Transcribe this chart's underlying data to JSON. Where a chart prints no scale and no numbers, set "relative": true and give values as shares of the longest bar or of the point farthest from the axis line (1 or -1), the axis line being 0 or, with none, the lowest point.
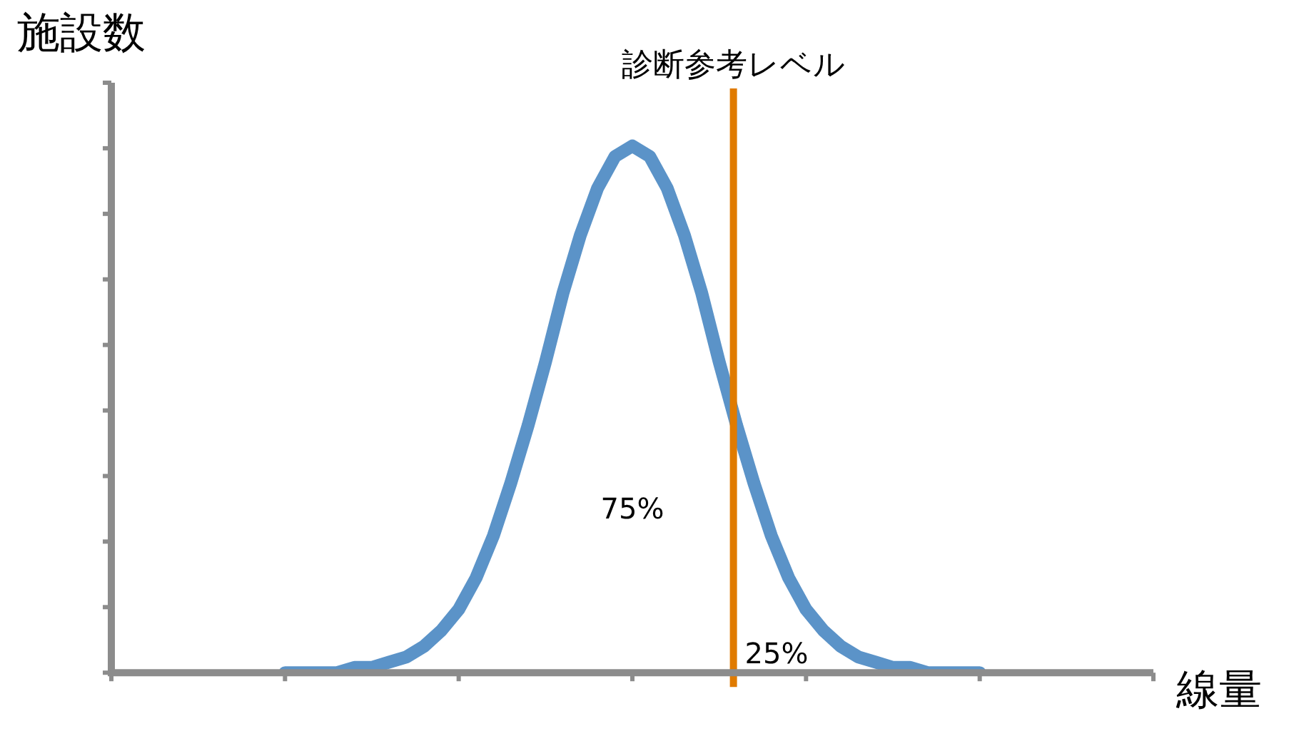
{
  "chart_data": {
    "type": "line",
    "relative": true,
    "xlabel": "線量",
    "ylabel": "施設数",
    "categories": [
      null,
      null,
      null,
      null,
      null,
      null,
      null,
      null,
      null,
      null,
      null,
      null,
      null,
      null,
      null,
      null,
      null,
      null,
      null,
      null,
      null,
      null,
      null,
      null,
      null,
      null,
      null,
      null,
      null,
      null,
      null,
      null,
      null,
      null,
      null,
      null,
      null,
      null,
      null,
      null,
      null,
      null,
      null,
      null,
      null,
      null,
      null,
      null,
      null,
      null,
      null,
      null,
      null,
      null,
      null,
      null,
      null,
      null,
      null,
      null,
      null
    ],
    "series": [
      {
        "color": "#5b93c8",
        "values": [
          null,
          null,
          null,
          null,
          null,
          null,
          null,
          null,
          null,
          null,
          0,
          0,
          0,
          0,
          0.01,
          0.01,
          0.02,
          0.03,
          0.05,
          0.08,
          0.12,
          0.18,
          0.26,
          0.36,
          0.47,
          0.59,
          0.72,
          0.83,
          0.92,
          0.98,
          1,
          0.98,
          0.92,
          0.83,
          0.72,
          0.59,
          0.47,
          0.36,
          0.26,
          0.18,
          0.12,
          0.08,
          0.05,
          0.03,
          0.02,
          0.01,
          0.01,
          0,
          0,
          0,
          0,
          null,
          null,
          null,
          null,
          null,
          null,
          null,
          null,
          null,
          null
        ]
      }
    ],
    "ref_lines": [
      {
        "axis": "x",
        "label": "診断参考レベル",
        "color": "#e07b00"
      }
    ],
    "annotations": [
      "75%",
      "25%"
    ],
    "marker": "none",
    "grid": false,
    "legend": false
  }
}
